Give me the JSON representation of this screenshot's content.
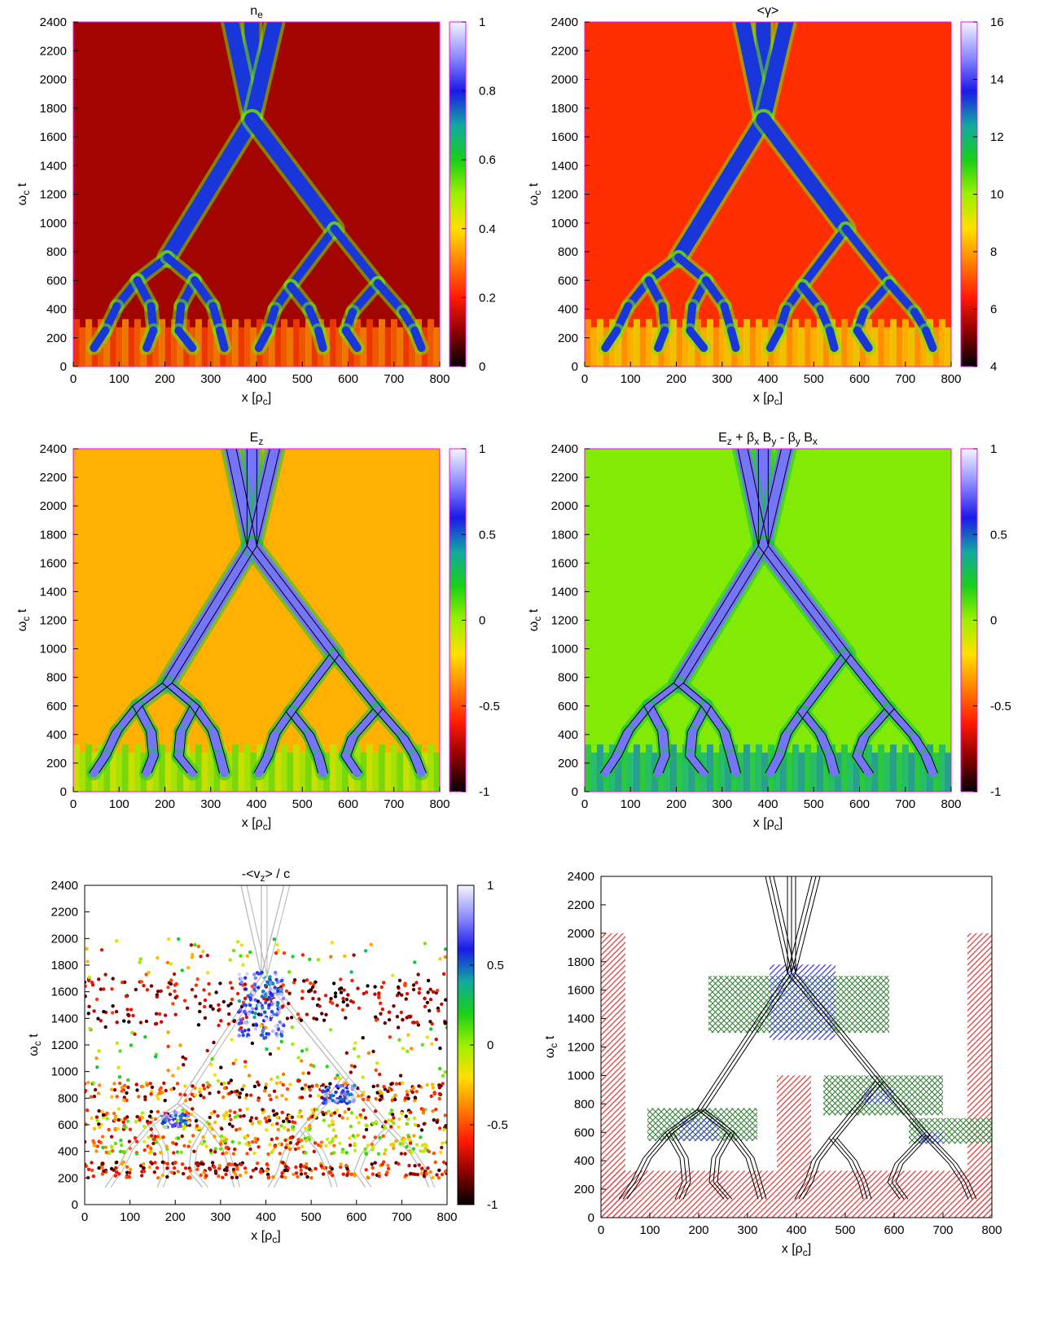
{
  "colors": {
    "frame": "#ff00ff",
    "contour_black": "#000000",
    "contour_grey": "#b4b4b4",
    "hatch_red": "#e43b3b",
    "hatch_green": "#2e7d32",
    "hatch_blue": "#3a3ae0"
  },
  "colormap": [
    "#000000",
    "#8b0000",
    "#ff1a00",
    "#ff7f00",
    "#ffe000",
    "#9cf000",
    "#18d018",
    "#12a8a0",
    "#1a1ae8",
    "#8c8cff",
    "#f4f4ff"
  ],
  "chart_data": [
    {
      "id": "ne",
      "type": "heatmap",
      "title": "n",
      "title_sub": "e",
      "title_rest": "",
      "xlabel": "x [ρ",
      "xlabel_sub": "c",
      "xlabel_end": "]",
      "ylabel": "ω",
      "ylabel_sub": "c",
      "ylabel_end": " t",
      "xlim": [
        0,
        800
      ],
      "ylim": [
        0,
        2400
      ],
      "xticks": [
        "0",
        "100",
        "200",
        "300",
        "400",
        "500",
        "600",
        "700",
        "800"
      ],
      "yticks": [
        "0",
        "200",
        "400",
        "600",
        "800",
        "1000",
        "1200",
        "1400",
        "1600",
        "1800",
        "2000",
        "2200",
        "2400"
      ],
      "colorbar": {
        "range": [
          0,
          1
        ],
        "ticks": [
          "0",
          "0.2",
          "0.4",
          "0.6",
          "0.8",
          "1"
        ]
      },
      "background_level": 0.12,
      "contours": false
    },
    {
      "id": "gamma",
      "type": "heatmap",
      "title": "<γ>",
      "title_sub": "",
      "title_rest": "",
      "xlabel": "x [ρ",
      "xlabel_sub": "c",
      "xlabel_end": "]",
      "ylabel": "ω",
      "ylabel_sub": "c",
      "ylabel_end": " t",
      "xlim": [
        0,
        800
      ],
      "ylim": [
        0,
        2400
      ],
      "xticks": [
        "0",
        "100",
        "200",
        "300",
        "400",
        "500",
        "600",
        "700",
        "800"
      ],
      "yticks": [
        "0",
        "200",
        "400",
        "600",
        "800",
        "1000",
        "1200",
        "1400",
        "1600",
        "1800",
        "2000",
        "2200",
        "2400"
      ],
      "colorbar": {
        "range": [
          4,
          16
        ],
        "ticks": [
          "4",
          "6",
          "8",
          "10",
          "12",
          "14",
          "16"
        ]
      },
      "background_level": 0.22,
      "contours": false
    },
    {
      "id": "ez",
      "type": "heatmap",
      "title": "E",
      "title_sub": "z",
      "title_rest": "",
      "xlabel": "x [ρ",
      "xlabel_sub": "c",
      "xlabel_end": "]",
      "ylabel": "ω",
      "ylabel_sub": "c",
      "ylabel_end": " t",
      "xlim": [
        0,
        800
      ],
      "ylim": [
        0,
        2400
      ],
      "xticks": [
        "0",
        "100",
        "200",
        "300",
        "400",
        "500",
        "600",
        "700",
        "800"
      ],
      "yticks": [
        "0",
        "200",
        "400",
        "600",
        "800",
        "1000",
        "1200",
        "1400",
        "1600",
        "1800",
        "2000",
        "2200",
        "2400"
      ],
      "colorbar": {
        "range": [
          -1,
          1
        ],
        "ticks": [
          "-1",
          "-0.5",
          "0",
          "0.5",
          "1"
        ]
      },
      "background_level": 0.35,
      "contours": true
    },
    {
      "id": "ezprime",
      "type": "heatmap",
      "title": "E",
      "title_sub": "z",
      "title_rest": " + β",
      "title_rich": [
        [
          "E",
          ""
        ],
        [
          "z",
          "sub"
        ],
        [
          " + β",
          ""
        ],
        [
          "x",
          "sub"
        ],
        [
          " B",
          ""
        ],
        [
          "y",
          "sub"
        ],
        [
          " - β",
          ""
        ],
        [
          "y",
          "sub"
        ],
        [
          " B",
          ""
        ],
        [
          "x",
          "sub"
        ]
      ],
      "xlabel": "x [ρ",
      "xlabel_sub": "c",
      "xlabel_end": "]",
      "ylabel": "ω",
      "ylabel_sub": "c",
      "ylabel_end": " t",
      "xlim": [
        0,
        800
      ],
      "ylim": [
        0,
        2400
      ],
      "xticks": [
        "0",
        "100",
        "200",
        "300",
        "400",
        "500",
        "600",
        "700",
        "800"
      ],
      "yticks": [
        "0",
        "200",
        "400",
        "600",
        "800",
        "1000",
        "1200",
        "1400",
        "1600",
        "1800",
        "2000",
        "2200",
        "2400"
      ],
      "colorbar": {
        "range": [
          -1,
          1
        ],
        "ticks": [
          "-1",
          "-0.5",
          "0",
          "0.5",
          "1"
        ]
      },
      "background_level": 0.52,
      "contours": true
    },
    {
      "id": "vz",
      "type": "scatter",
      "title": "-<v",
      "title_sub": "z",
      "title_rest": "> / c",
      "xlabel": "x [ρ",
      "xlabel_sub": "c",
      "xlabel_end": "]",
      "ylabel": "ω",
      "ylabel_sub": "c",
      "ylabel_end": " t",
      "xlim": [
        0,
        800
      ],
      "ylim": [
        0,
        2400
      ],
      "xticks": [
        "0",
        "100",
        "200",
        "300",
        "400",
        "500",
        "600",
        "700",
        "800"
      ],
      "yticks": [
        "0",
        "200",
        "400",
        "600",
        "800",
        "1000",
        "1200",
        "1400",
        "1600",
        "1800",
        "2000",
        "2200",
        "2400"
      ],
      "colorbar": {
        "range": [
          -1,
          1
        ],
        "ticks": [
          "-1",
          "-0.5",
          "0",
          "0.5",
          "1"
        ]
      },
      "point_bands": [
        {
          "y": [
            1350,
            1700
          ],
          "x": [
            0,
            800
          ],
          "v": [
            -1,
            -0.5
          ],
          "n": 260
        },
        {
          "y": [
            1250,
            1750
          ],
          "x": [
            340,
            440
          ],
          "v": [
            0.4,
            1
          ],
          "n": 180
        },
        {
          "y": [
            780,
            920
          ],
          "x": [
            0,
            800
          ],
          "v": [
            -1,
            -0.2
          ],
          "n": 200
        },
        {
          "y": [
            760,
            900
          ],
          "x": [
            520,
            600
          ],
          "v": [
            0.4,
            1
          ],
          "n": 70
        },
        {
          "y": [
            560,
            720
          ],
          "x": [
            0,
            800
          ],
          "v": [
            -1,
            0.1
          ],
          "n": 260
        },
        {
          "y": [
            580,
            700
          ],
          "x": [
            170,
            230
          ],
          "v": [
            0.4,
            1
          ],
          "n": 50
        },
        {
          "y": [
            380,
            520
          ],
          "x": [
            0,
            800
          ],
          "v": [
            -0.8,
            0.2
          ],
          "n": 220
        },
        {
          "y": [
            200,
            320
          ],
          "x": [
            0,
            800
          ],
          "v": [
            -1,
            -0.3
          ],
          "n": 240
        },
        {
          "y": [
            900,
            1350
          ],
          "x": [
            0,
            800
          ],
          "v": [
            -1,
            0.3
          ],
          "n": 110
        },
        {
          "y": [
            1700,
            2000
          ],
          "x": [
            0,
            800
          ],
          "v": [
            -0.8,
            0.4
          ],
          "n": 60
        }
      ],
      "contours": true
    },
    {
      "id": "regions",
      "type": "contour",
      "title": "",
      "xlabel": "x [ρ",
      "xlabel_sub": "c",
      "xlabel_end": "]",
      "ylabel": "ω",
      "ylabel_sub": "c",
      "ylabel_end": " t",
      "xlim": [
        0,
        800
      ],
      "ylim": [
        0,
        2400
      ],
      "xticks": [
        "0",
        "100",
        "200",
        "300",
        "400",
        "500",
        "600",
        "700",
        "800"
      ],
      "yticks": [
        "0",
        "200",
        "400",
        "600",
        "800",
        "1000",
        "1200",
        "1400",
        "1600",
        "1800",
        "2000",
        "2200",
        "2400"
      ],
      "hatched_regions": [
        {
          "pattern": "red",
          "x": [
            0,
            50
          ],
          "y": [
            0,
            2000
          ]
        },
        {
          "pattern": "red",
          "x": [
            750,
            800
          ],
          "y": [
            0,
            2000
          ]
        },
        {
          "pattern": "red",
          "x": [
            0,
            800
          ],
          "y": [
            0,
            330
          ]
        },
        {
          "pattern": "red",
          "x": [
            360,
            430
          ],
          "y": [
            330,
            1000
          ]
        },
        {
          "pattern": "green",
          "x": [
            220,
            590
          ],
          "y": [
            1300,
            1700
          ]
        },
        {
          "pattern": "blue",
          "x": [
            345,
            480
          ],
          "y": [
            1250,
            1780
          ]
        },
        {
          "pattern": "green",
          "x": [
            95,
            320
          ],
          "y": [
            540,
            770
          ]
        },
        {
          "pattern": "blue",
          "x": [
            160,
            240
          ],
          "y": [
            540,
            700
          ]
        },
        {
          "pattern": "green",
          "x": [
            455,
            700
          ],
          "y": [
            720,
            1000
          ]
        },
        {
          "pattern": "blue",
          "x": [
            540,
            600
          ],
          "y": [
            800,
            900
          ]
        },
        {
          "pattern": "green",
          "x": [
            630,
            800
          ],
          "y": [
            520,
            700
          ]
        },
        {
          "pattern": "blue",
          "x": [
            650,
            700
          ],
          "y": [
            520,
            600
          ]
        }
      ]
    }
  ]
}
